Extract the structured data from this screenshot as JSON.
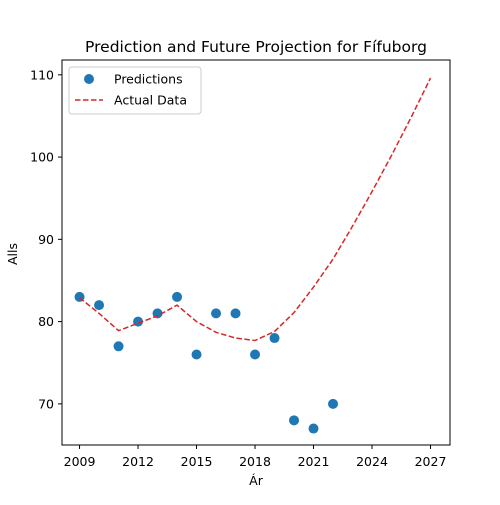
{
  "chart_data": {
    "type": "scatter+line",
    "title": "Prediction and Future Projection for Fífuborg",
    "xlabel": "Ár",
    "ylabel": "Alls",
    "xlim": [
      2008.1,
      2028.0
    ],
    "ylim": [
      65.0,
      111.8
    ],
    "xticks": [
      2009,
      2012,
      2015,
      2018,
      2021,
      2024,
      2027
    ],
    "yticks": [
      70,
      80,
      90,
      100,
      110
    ],
    "grid": false,
    "legend_position": "top-left",
    "series": [
      {
        "name": "Predictions",
        "kind": "scatter",
        "color": "#1f77b4",
        "x": [
          2009,
          2010,
          2011,
          2012,
          2013,
          2014,
          2015,
          2016,
          2017,
          2018,
          2019,
          2020,
          2021,
          2022
        ],
        "y": [
          83,
          82,
          77,
          80,
          81,
          83,
          76,
          81,
          81,
          76,
          78,
          68,
          67,
          70
        ]
      },
      {
        "name": "Actual Data",
        "kind": "line",
        "style": "dashed",
        "color": "#d62728",
        "x": [
          2009,
          2010,
          2011,
          2012,
          2013,
          2014,
          2015,
          2016,
          2017,
          2018,
          2019,
          2020,
          2021,
          2022,
          2023,
          2024,
          2025,
          2026,
          2027
        ],
        "y": [
          82.9,
          81.0,
          78.9,
          79.8,
          80.7,
          82.0,
          80.0,
          78.7,
          78.0,
          77.7,
          78.8,
          81.1,
          84.2,
          87.6,
          91.6,
          95.8,
          100.2,
          104.8,
          109.6
        ]
      }
    ]
  }
}
